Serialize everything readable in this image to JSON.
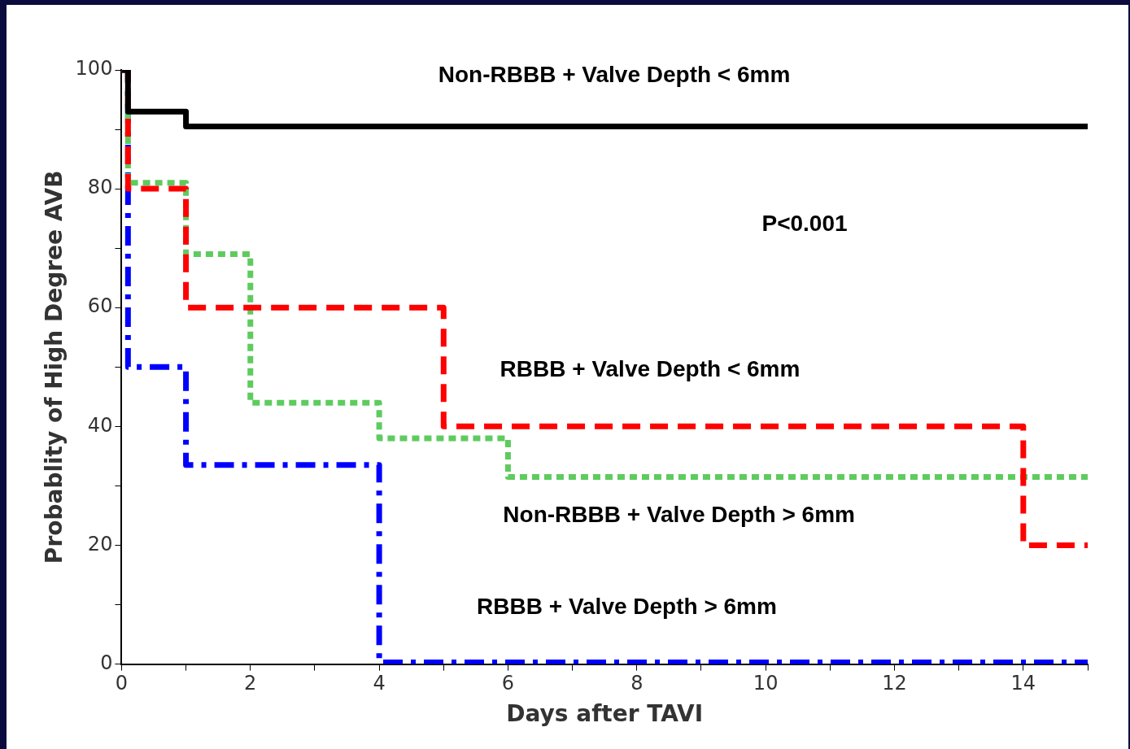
{
  "chart_data": {
    "type": "step",
    "xlabel": "Days after TAVI",
    "ylabel": "Probablity of High Degree AVB",
    "xlim": [
      0,
      15
    ],
    "ylim": [
      0,
      100
    ],
    "xticks": [
      0,
      {
        "value": 1,
        "label": null
      },
      2,
      {
        "value": 3,
        "label": null
      },
      4,
      {
        "value": 5,
        "label": null
      },
      6,
      {
        "value": 7,
        "label": null
      },
      8,
      {
        "value": 9,
        "label": null
      },
      10,
      {
        "value": 11,
        "label": null
      },
      12,
      {
        "value": 13,
        "label": null
      },
      14,
      {
        "value": 15,
        "label": null
      }
    ],
    "yticks": [
      0,
      {
        "value": 10,
        "label": null
      },
      20,
      {
        "value": 30,
        "label": null
      },
      40,
      {
        "value": 50,
        "label": null
      },
      60,
      {
        "value": 70,
        "label": null
      },
      80,
      {
        "value": 90,
        "label": null
      },
      100
    ],
    "grid": false,
    "legend": false,
    "series": [
      {
        "name": "Non-RBBB + Valve Depth < 6mm",
        "color": "#000000",
        "line_style": "solid",
        "x": [
          0,
          0.1,
          1,
          15
        ],
        "values": [
          100,
          93,
          90.5,
          90.5
        ]
      },
      {
        "name": "RBBB + Valve Depth < 6mm",
        "color": "#ff0000",
        "line_style": "dashed",
        "x": [
          0,
          0.1,
          1,
          5,
          14,
          15
        ],
        "values": [
          100,
          80,
          60,
          40,
          20,
          20
        ]
      },
      {
        "name": "Non-RBBB + Valve Depth > 6mm",
        "color": "#5ecb5e",
        "line_style": "dotted",
        "x": [
          0,
          0.1,
          1,
          2,
          4,
          6,
          15
        ],
        "values": [
          100,
          81,
          69,
          44,
          38,
          31.5,
          31.5
        ]
      },
      {
        "name": "RBBB + Valve Depth > 6mm",
        "color": "#0000ff",
        "line_style": "dashdot",
        "x": [
          0,
          0.1,
          1,
          4,
          15
        ],
        "values": [
          100,
          50,
          33.5,
          0.3,
          0.3
        ]
      }
    ],
    "annotations": [
      "P<0.001"
    ]
  }
}
